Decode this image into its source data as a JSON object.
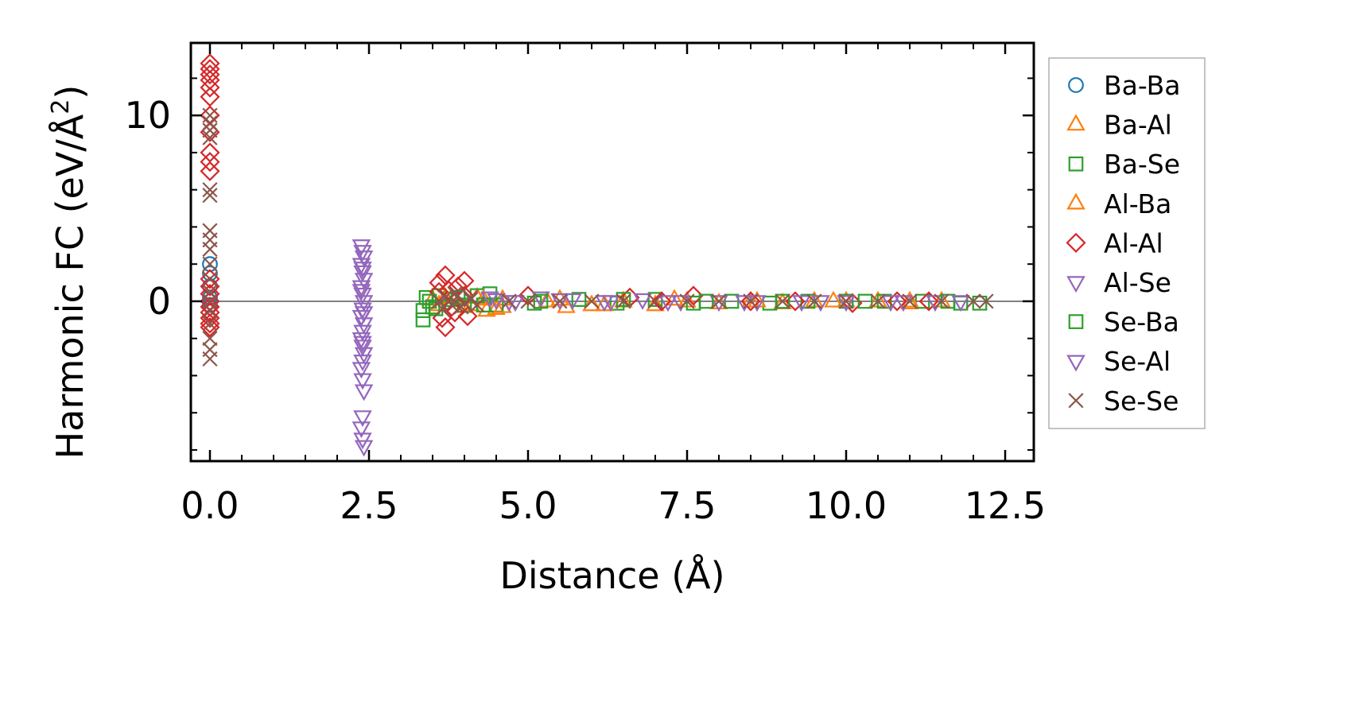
{
  "chart_data": {
    "type": "scatter",
    "title": "",
    "xlabel": "Distance (Å)",
    "ylabel_main": "Harmonic FC (eV/Å",
    "ylabel_sup": "2",
    "ylabel_close": ")",
    "xlim": [
      -0.3,
      12.95
    ],
    "ylim": [
      -8.6,
      13.9
    ],
    "xticks": [
      0.0,
      2.5,
      5.0,
      7.5,
      10.0,
      12.5
    ],
    "xtick_labels": [
      "0.0",
      "2.5",
      "5.0",
      "7.5",
      "10.0",
      "12.5"
    ],
    "yticks": [
      0,
      10
    ],
    "ytick_labels": [
      "0",
      "10"
    ],
    "hline": 0,
    "legend_position": "right",
    "series": [
      {
        "name": "Ba-Ba",
        "marker": "circle",
        "color": "#1f77b4",
        "x": [
          0.0,
          0.0,
          0.0,
          0.0,
          0.0
        ],
        "y": [
          2.0,
          1.5,
          0.8,
          0.2,
          -0.2
        ]
      },
      {
        "name": "Ba-Al",
        "marker": "triangle-up",
        "color": "#ff7f0e",
        "x": [
          3.5,
          3.6,
          3.8,
          4.0,
          4.2,
          4.35,
          4.5,
          4.6,
          5.3,
          5.6,
          6.0,
          6.5,
          7.0,
          7.5,
          8.0,
          8.5,
          9.0,
          9.5,
          10.0,
          10.5,
          11.0,
          11.5
        ],
        "y": [
          0.1,
          -0.2,
          0.2,
          -0.3,
          0.2,
          -0.5,
          -0.4,
          0.1,
          0.0,
          -0.3,
          -0.2,
          0.0,
          -0.2,
          0.0,
          -0.1,
          0.0,
          -0.1,
          0.0,
          0.0,
          0.0,
          -0.1,
          0.0
        ]
      },
      {
        "name": "Ba-Se",
        "marker": "square",
        "color": "#2ca02c",
        "x": [
          3.35,
          3.35,
          3.4,
          3.5,
          3.6,
          3.8,
          4.0,
          4.2,
          4.4,
          4.5,
          5.1,
          5.8,
          6.4,
          7.0,
          7.6,
          8.2,
          8.8,
          9.4,
          10.0,
          10.6,
          11.2,
          11.8,
          12.1
        ],
        "y": [
          -0.5,
          -1.0,
          0.2,
          -0.3,
          0.3,
          0.1,
          -0.2,
          0.3,
          0.4,
          -0.2,
          -0.1,
          0.1,
          -0.1,
          0.1,
          -0.1,
          0.0,
          -0.1,
          0.0,
          0.0,
          0.0,
          0.0,
          -0.1,
          -0.1
        ]
      },
      {
        "name": "Al-Ba",
        "marker": "triangle-up",
        "color": "#ff7f0e",
        "x": [
          3.7,
          4.1,
          4.3,
          4.6,
          5.5,
          6.2,
          7.3,
          8.6,
          9.8,
          11.0
        ],
        "y": [
          0.2,
          -0.2,
          0.1,
          -0.3,
          0.1,
          -0.2,
          0.1,
          0.0,
          0.0,
          0.0
        ]
      },
      {
        "name": "Al-Al",
        "marker": "diamond",
        "color": "#d62728",
        "x": [
          0.0,
          0.0,
          0.0,
          0.0,
          0.0,
          0.0,
          0.0,
          0.0,
          0.0,
          0.0,
          0.0,
          0.0,
          0.0,
          0.0,
          0.0,
          0.0,
          0.0,
          0.0,
          0.0,
          0.0,
          3.6,
          3.7,
          3.75,
          3.8,
          3.9,
          4.0,
          3.65,
          3.85,
          3.7,
          4.05,
          3.6,
          4.0,
          5.0,
          6.6,
          7.1,
          7.6,
          8.5,
          9.2,
          10.1,
          10.8,
          11.3
        ],
        "y": [
          12.8,
          12.5,
          12.2,
          11.9,
          11.5,
          11.0,
          10.0,
          9.1,
          8.0,
          7.5,
          7.0,
          1.2,
          0.8,
          0.4,
          0.0,
          -0.3,
          -0.6,
          -0.9,
          -1.2,
          -1.4,
          1.0,
          1.4,
          0.6,
          -0.3,
          0.8,
          1.1,
          -0.9,
          -0.6,
          -1.4,
          -0.8,
          0.5,
          0.3,
          0.3,
          0.2,
          0.0,
          0.3,
          0.0,
          0.0,
          -0.1,
          0.0,
          0.0
        ]
      },
      {
        "name": "Al-Se",
        "marker": "triangle-down",
        "color": "#9467bd",
        "x": [
          2.38,
          2.4,
          2.42,
          2.38,
          2.4,
          2.42,
          2.38,
          2.4,
          2.42,
          2.4,
          2.38,
          2.42,
          2.4,
          2.38,
          2.4,
          2.42,
          2.4,
          2.38,
          2.4,
          2.42,
          2.4,
          2.38,
          2.4,
          2.42,
          4.5,
          4.8,
          5.2,
          5.7,
          6.2,
          6.8,
          7.4,
          8.0,
          8.6,
          9.3,
          10.0,
          10.7,
          11.4
        ],
        "y": [
          3.0,
          2.7,
          2.4,
          2.0,
          1.6,
          1.2,
          0.8,
          0.4,
          0.0,
          -0.4,
          -0.8,
          -1.2,
          -1.6,
          -2.0,
          -2.4,
          -2.8,
          -3.2,
          -3.6,
          -4.2,
          -4.8,
          -6.2,
          -6.8,
          -7.4,
          -7.8,
          0.1,
          0.0,
          0.2,
          0.1,
          0.0,
          0.1,
          0.0,
          0.0,
          0.0,
          0.0,
          0.0,
          0.0,
          0.0
        ]
      },
      {
        "name": "Se-Ba",
        "marker": "square",
        "color": "#2ca02c",
        "x": [
          3.45,
          3.55,
          3.9,
          4.3,
          5.2,
          6.5,
          7.8,
          9.0,
          10.3,
          11.6
        ],
        "y": [
          0.0,
          -0.4,
          0.2,
          -0.2,
          0.0,
          0.1,
          0.0,
          0.0,
          0.0,
          0.0
        ]
      },
      {
        "name": "Se-Al",
        "marker": "triangle-down",
        "color": "#9467bd",
        "x": [
          2.4,
          2.38,
          2.42,
          2.4,
          4.4,
          4.7,
          5.5,
          6.3,
          7.2,
          8.4,
          9.6,
          10.9,
          11.8
        ],
        "y": [
          1.8,
          0.6,
          -0.6,
          -2.2,
          0.2,
          0.0,
          0.1,
          0.0,
          0.0,
          0.0,
          0.0,
          0.0,
          0.0
        ]
      },
      {
        "name": "Se-Se",
        "marker": "x",
        "color": "#8c564b",
        "x": [
          0.0,
          0.0,
          0.0,
          0.0,
          0.0,
          0.0,
          0.0,
          0.0,
          0.0,
          0.0,
          0.0,
          0.0,
          0.0,
          0.0,
          0.0,
          0.0,
          0.0,
          0.0,
          3.6,
          3.7,
          3.8,
          3.9,
          4.0,
          4.1,
          4.2,
          3.65,
          3.85,
          3.95,
          4.1,
          4.7,
          5.0,
          5.5,
          6.0,
          6.5,
          7.0,
          7.5,
          8.0,
          8.5,
          9.0,
          9.5,
          10.0,
          10.5,
          11.0,
          11.5,
          12.0,
          12.2
        ],
        "y": [
          10.0,
          9.6,
          9.2,
          8.8,
          6.0,
          5.7,
          3.8,
          3.3,
          2.8,
          2.0,
          1.2,
          0.5,
          0.0,
          -0.5,
          -1.2,
          -2.0,
          -2.6,
          -3.1,
          0.0,
          0.2,
          -0.2,
          0.3,
          -0.1,
          0.1,
          -0.2,
          -0.4,
          0.4,
          -0.3,
          0.2,
          0.0,
          0.0,
          0.0,
          0.0,
          0.0,
          0.0,
          0.0,
          0.0,
          0.0,
          0.0,
          0.0,
          0.0,
          0.0,
          0.0,
          0.0,
          0.0,
          0.0
        ]
      }
    ]
  }
}
